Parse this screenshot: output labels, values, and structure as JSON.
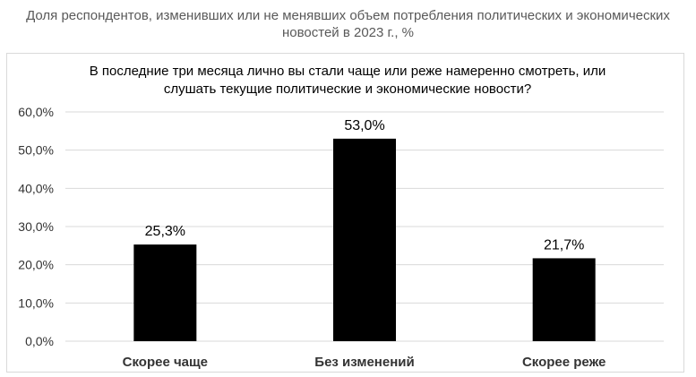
{
  "header": {
    "line1": "Доля респондентов, изменивших или не менявших объем потребления политических и экономических",
    "line2": "новостей в 2023 г., %"
  },
  "chart_data": {
    "type": "bar",
    "title_lines": [
      "В последние три месяца лично вы стали чаще или реже намеренно смотреть, или",
      "слушать текущие политические и экономические новости?"
    ],
    "categories": [
      "Скорее чаще",
      "Без изменений",
      "Скорее реже"
    ],
    "values": [
      25.3,
      53.0,
      21.7
    ],
    "value_labels": [
      "25,3%",
      "53,0%",
      "21,7%"
    ],
    "yticks": [
      "0,0%",
      "10,0%",
      "20,0%",
      "30,0%",
      "40,0%",
      "50,0%",
      "60,0%"
    ],
    "ylim": [
      0,
      60
    ],
    "grid": true,
    "bar_color": "#000000",
    "grid_color": "#d9d9d9"
  }
}
